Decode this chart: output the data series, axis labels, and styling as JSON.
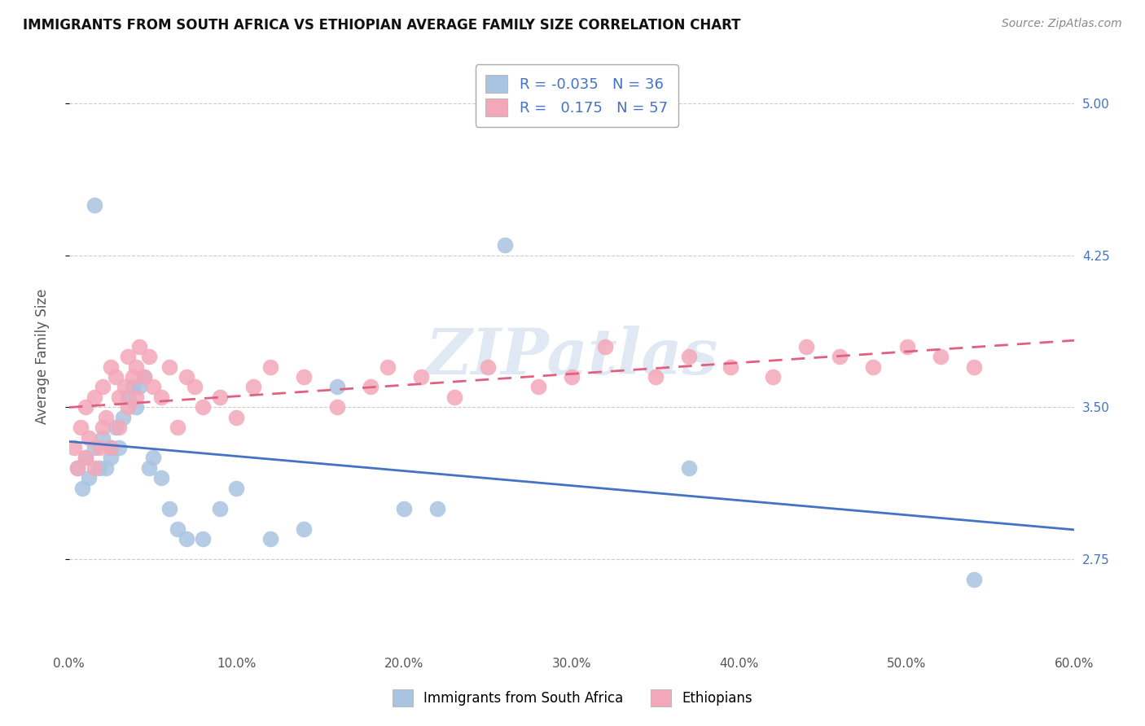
{
  "title": "IMMIGRANTS FROM SOUTH AFRICA VS ETHIOPIAN AVERAGE FAMILY SIZE CORRELATION CHART",
  "source": "Source: ZipAtlas.com",
  "xlabel": "",
  "ylabel": "Average Family Size",
  "xlim": [
    0.0,
    0.6
  ],
  "ylim": [
    2.3,
    5.2
  ],
  "yticks": [
    2.75,
    3.5,
    4.25,
    5.0
  ],
  "xticks": [
    0.0,
    0.1,
    0.2,
    0.3,
    0.4,
    0.5,
    0.6
  ],
  "xtick_labels": [
    "0.0%",
    "10.0%",
    "20.0%",
    "30.0%",
    "40.0%",
    "50.0%",
    "60.0%"
  ],
  "ytick_labels_right": [
    "2.75",
    "3.50",
    "4.25",
    "5.00"
  ],
  "legend_label1": "Immigrants from South Africa",
  "legend_label2": "Ethiopians",
  "R1": "-0.035",
  "N1": "36",
  "R2": "0.175",
  "N2": "57",
  "color1": "#a8c4e0",
  "color2": "#f4a7b9",
  "line_color1": "#4472c4",
  "line_color2": "#e06080",
  "watermark": "ZIPatlas",
  "background_color": "#ffffff",
  "blue_x": [
    0.005,
    0.008,
    0.01,
    0.012,
    0.015,
    0.018,
    0.02,
    0.022,
    0.025,
    0.025,
    0.028,
    0.03,
    0.032,
    0.035,
    0.038,
    0.04,
    0.042,
    0.045,
    0.048,
    0.05,
    0.055,
    0.06,
    0.065,
    0.07,
    0.08,
    0.09,
    0.1,
    0.12,
    0.14,
    0.16,
    0.2,
    0.22,
    0.26,
    0.37,
    0.54,
    0.015
  ],
  "blue_y": [
    3.2,
    3.1,
    3.25,
    3.15,
    3.3,
    3.2,
    3.35,
    3.2,
    3.3,
    3.25,
    3.4,
    3.3,
    3.45,
    3.55,
    3.6,
    3.5,
    3.6,
    3.65,
    3.2,
    3.25,
    3.15,
    3.0,
    2.9,
    2.85,
    2.85,
    3.0,
    3.1,
    2.85,
    2.9,
    3.6,
    3.0,
    3.0,
    4.3,
    3.2,
    2.65,
    4.5
  ],
  "pink_x": [
    0.003,
    0.005,
    0.007,
    0.01,
    0.01,
    0.012,
    0.015,
    0.015,
    0.018,
    0.02,
    0.02,
    0.022,
    0.025,
    0.025,
    0.028,
    0.03,
    0.03,
    0.033,
    0.035,
    0.035,
    0.038,
    0.04,
    0.04,
    0.042,
    0.045,
    0.048,
    0.05,
    0.055,
    0.06,
    0.065,
    0.07,
    0.075,
    0.08,
    0.09,
    0.1,
    0.11,
    0.12,
    0.14,
    0.16,
    0.18,
    0.19,
    0.21,
    0.23,
    0.25,
    0.28,
    0.3,
    0.32,
    0.35,
    0.37,
    0.395,
    0.42,
    0.44,
    0.46,
    0.48,
    0.5,
    0.52,
    0.54
  ],
  "pink_y": [
    3.3,
    3.2,
    3.4,
    3.25,
    3.5,
    3.35,
    3.2,
    3.55,
    3.3,
    3.4,
    3.6,
    3.45,
    3.3,
    3.7,
    3.65,
    3.55,
    3.4,
    3.6,
    3.5,
    3.75,
    3.65,
    3.55,
    3.7,
    3.8,
    3.65,
    3.75,
    3.6,
    3.55,
    3.7,
    3.4,
    3.65,
    3.6,
    3.5,
    3.55,
    3.45,
    3.6,
    3.7,
    3.65,
    3.5,
    3.6,
    3.7,
    3.65,
    3.55,
    3.7,
    3.6,
    3.65,
    3.8,
    3.65,
    3.75,
    3.7,
    3.65,
    3.8,
    3.75,
    3.7,
    3.8,
    3.75,
    3.7
  ]
}
